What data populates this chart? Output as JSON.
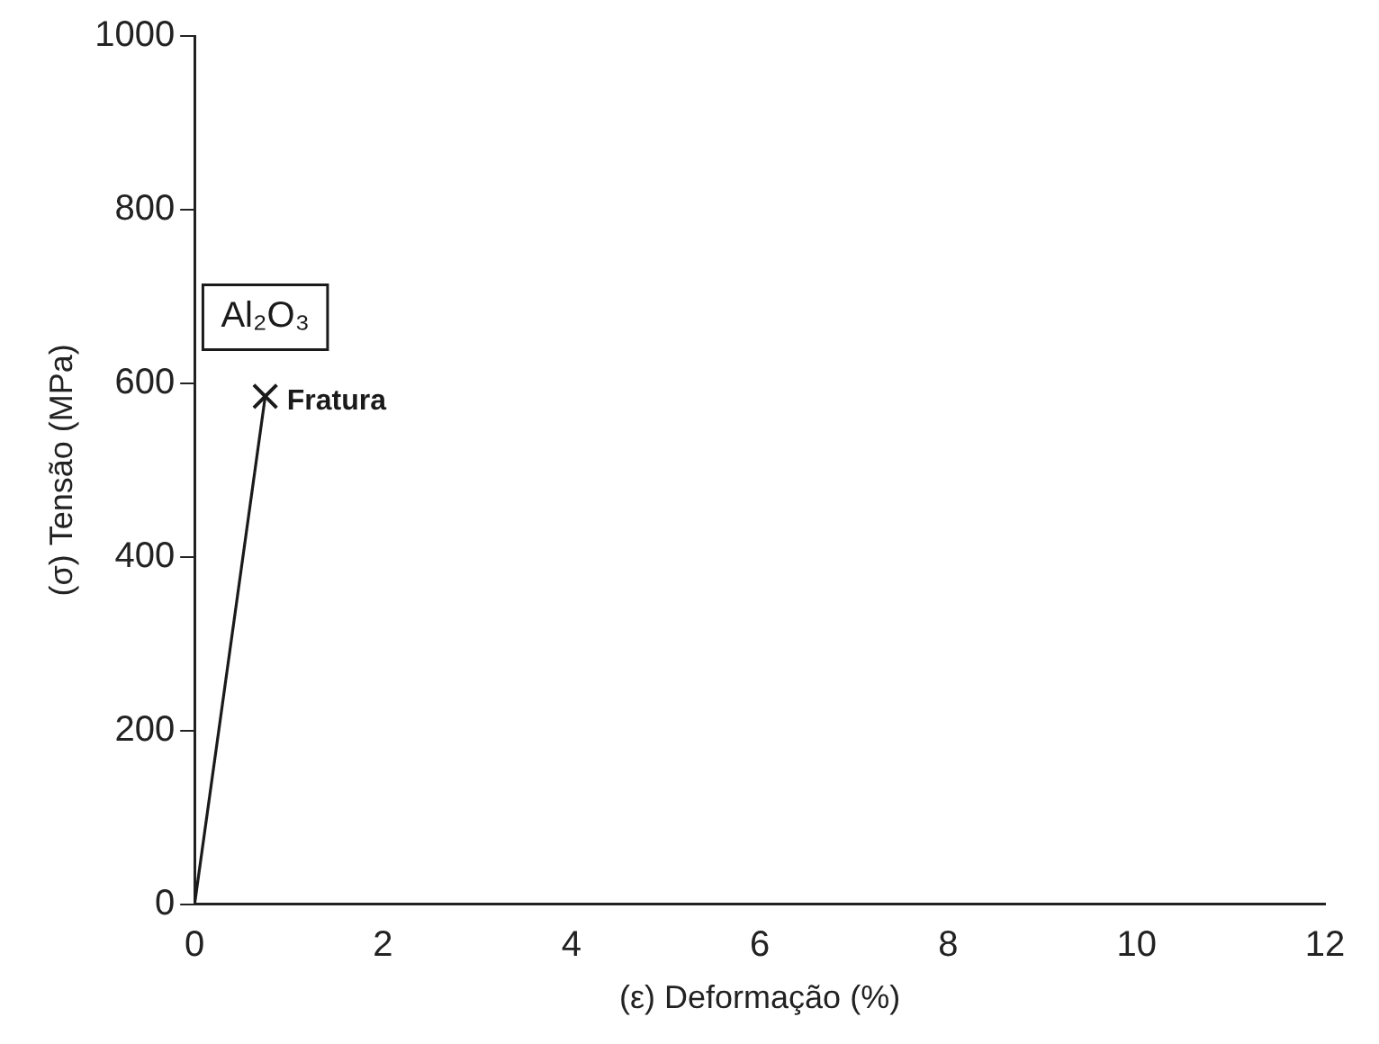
{
  "chart_data": {
    "type": "line",
    "x": [
      0,
      0.75
    ],
    "series": [
      {
        "name": "Al₂O₃",
        "color": "#1a1a1a",
        "values": [
          0,
          585
        ]
      }
    ],
    "xlabel": "(ε) Deformação (%)",
    "ylabel": "(σ) Tensão (MPa)",
    "xlim": [
      0,
      12
    ],
    "xticks": [
      0,
      2,
      4,
      6,
      8,
      10,
      12
    ],
    "ylim": [
      0,
      1000
    ],
    "yticks": [
      0,
      200,
      400,
      600,
      800,
      1000
    ],
    "annotations": [
      {
        "text": "Fratura",
        "x": 0.75,
        "y": 585
      }
    ],
    "grid": false,
    "legend": false,
    "marker": "cross",
    "line_style": "solid"
  }
}
